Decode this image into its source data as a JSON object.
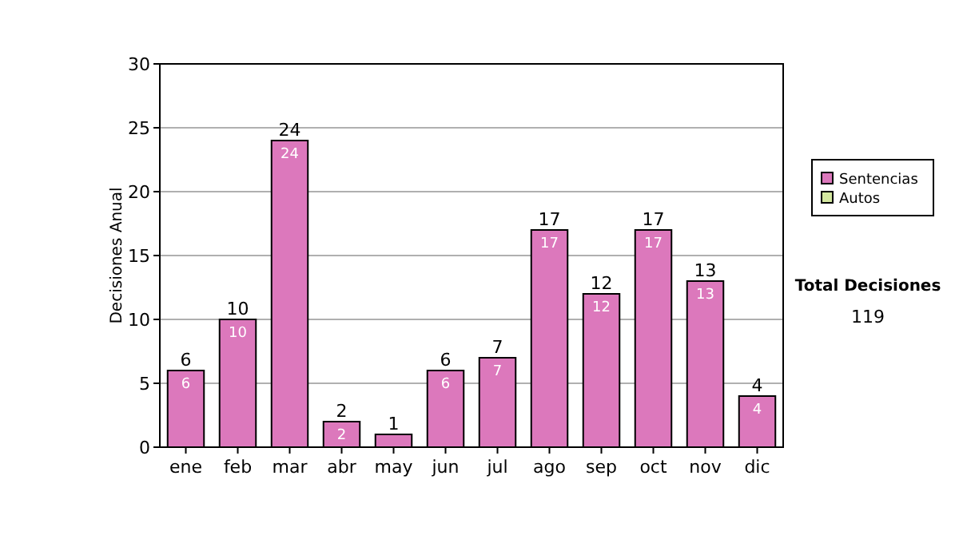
{
  "chart_data": {
    "type": "bar",
    "stacked": true,
    "ylabel": "Decisiones Anual",
    "categories": [
      "ene",
      "feb",
      "mar",
      "abr",
      "may",
      "jun",
      "jul",
      "ago",
      "sep",
      "oct",
      "nov",
      "dic"
    ],
    "series": [
      {
        "name": "Sentencias",
        "color": "#dc78bc",
        "values": [
          6,
          10,
          24,
          2,
          1,
          6,
          7,
          17,
          12,
          17,
          13,
          4
        ],
        "value_labels": [
          "6",
          "10",
          "24",
          "2",
          null,
          "6",
          "7",
          "17",
          "12",
          "17",
          "13",
          "4"
        ]
      },
      {
        "name": "Autos",
        "color": "#d4e8a0",
        "values": [
          0,
          0,
          0,
          0,
          0,
          0,
          0,
          0,
          0,
          0,
          0,
          0
        ]
      }
    ],
    "totals": [
      "6",
      "10",
      "24",
      "2",
      "1",
      "6",
      "7",
      "17",
      "12",
      "17",
      "13",
      "4"
    ],
    "ylim": [
      0,
      30
    ],
    "yticks": [
      0,
      5,
      10,
      15,
      20,
      25,
      30
    ],
    "grid": "y",
    "legend": "right",
    "annotations": [
      "Total Decisiones",
      "119"
    ]
  }
}
